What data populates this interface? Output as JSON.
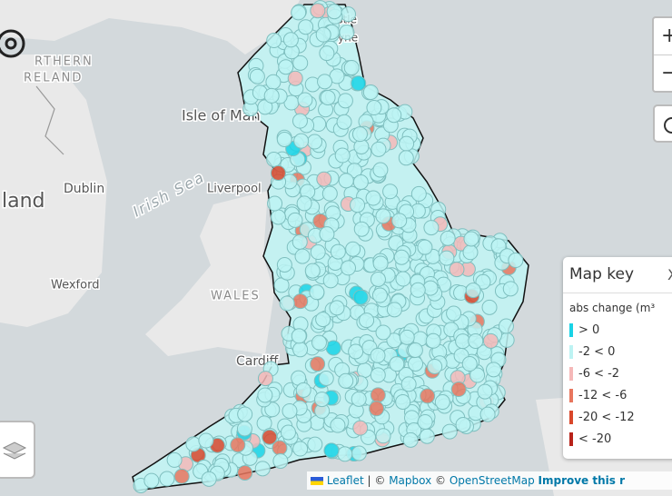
{
  "map": {
    "labels": [
      {
        "text": "RTHERN",
        "kind": "region"
      },
      {
        "text": "RELAND",
        "kind": "region"
      },
      {
        "text": "Isle of Man",
        "kind": "place"
      },
      {
        "text": "land",
        "kind": "country"
      },
      {
        "text": "Dublin",
        "kind": "city"
      },
      {
        "text": "Irish Sea",
        "kind": "sea"
      },
      {
        "text": "Liverpool",
        "kind": "city"
      },
      {
        "text": "Wexford",
        "kind": "city"
      },
      {
        "text": "WALES",
        "kind": "region"
      },
      {
        "text": "Cardiff",
        "kind": "city"
      },
      {
        "text": "astle",
        "kind": "city"
      },
      {
        "text": "yne",
        "kind": "city"
      }
    ]
  },
  "controls": {
    "zoom_in": "+",
    "zoom_out": "−"
  },
  "legend": {
    "title": "Map key",
    "close": "X",
    "subtitle": "abs change (m³",
    "items": [
      {
        "label": "> 0",
        "color": "#19d3e6"
      },
      {
        "label": "-2 < 0",
        "color": "#bdf3f3"
      },
      {
        "label": "-6 < -2",
        "color": "#f5b8b8"
      },
      {
        "label": "-12 < -6",
        "color": "#e8765e"
      },
      {
        "label": "-20 < -12",
        "color": "#d9472b"
      },
      {
        "label": "< -20",
        "color": "#b8231a"
      }
    ]
  },
  "attribution": {
    "leaflet": "Leaflet",
    "sep1": " | © ",
    "mapbox": "Mapbox",
    "sep2": " © ",
    "osm": "OpenStreetMap",
    "improve": "Improve this r"
  }
}
